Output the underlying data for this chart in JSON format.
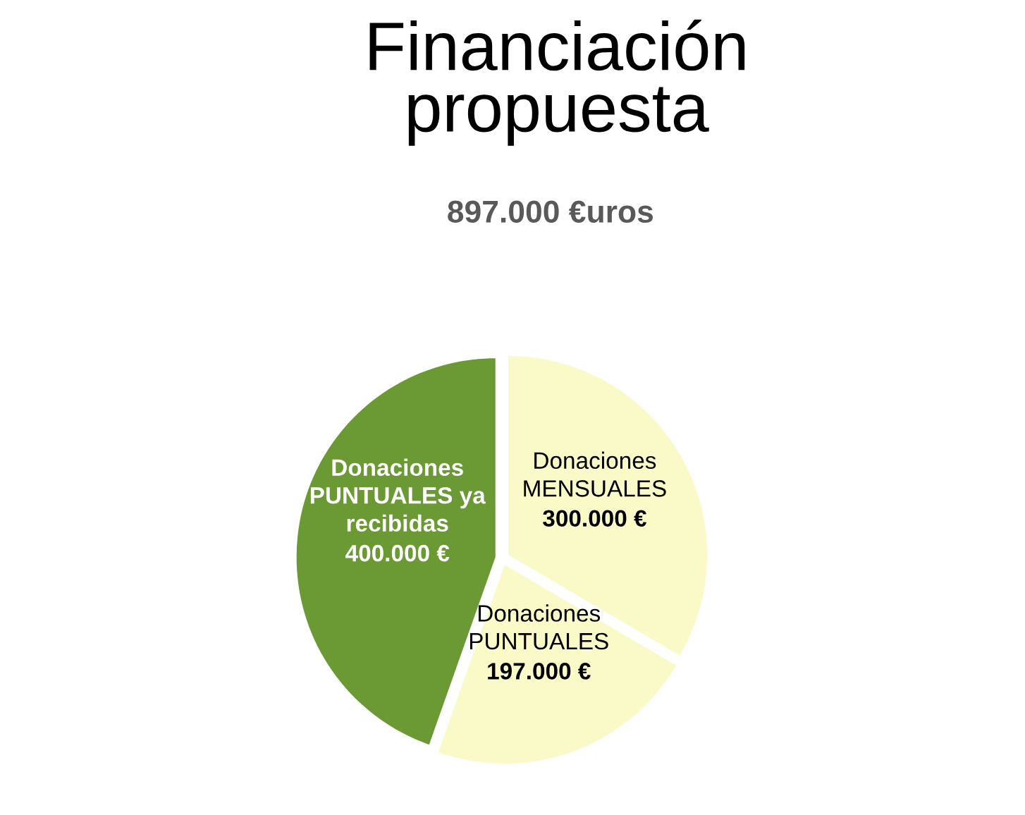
{
  "chart_data": {
    "type": "pie",
    "title": "Financiación\npropuesta",
    "subtitle": "897.000 €uros",
    "categories": [
      "Donaciones\nMENSUALES",
      "Donaciones\nPUNTUALES",
      "Donaciones\nPUNTUALES ya\nrecibidas"
    ],
    "values": [
      300000,
      197000,
      400000
    ],
    "colors": [
      "#fafac8",
      "#fafac8",
      "#6b9a34"
    ],
    "value_labels": [
      "300.000 €",
      "197.000 €",
      "400.000 €"
    ]
  }
}
